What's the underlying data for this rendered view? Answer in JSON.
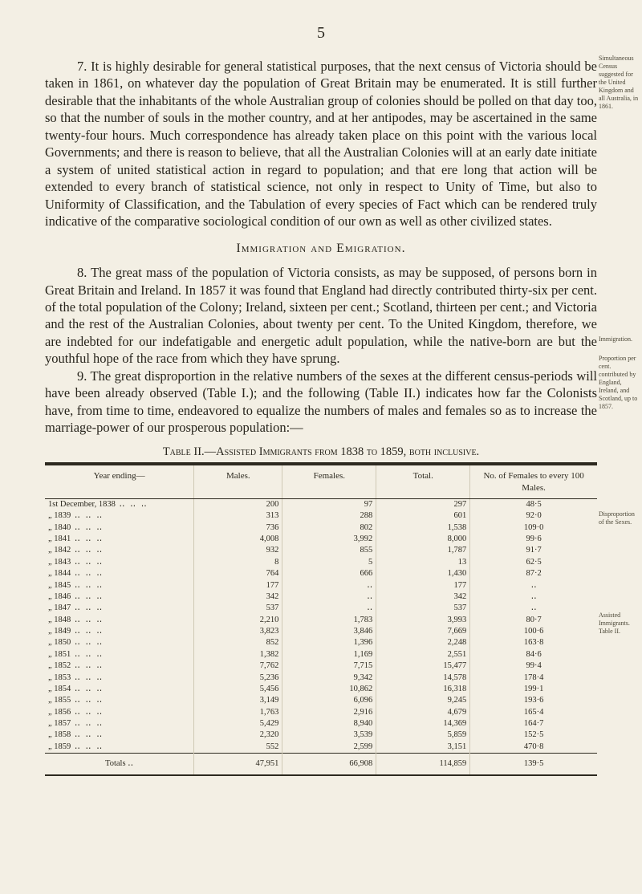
{
  "page_number": "5",
  "paragraphs": {
    "p7": "7. It is highly desirable for general statistical purposes, that the next census of Victoria should be taken in 1861, on whatever day the population of Great Britain may be enumerated. It is still further desirable that the inhabitants of the whole Australian group of colonies should be polled on that day too, so that the number of souls in the mother country, and at her antipodes, may be ascertained in the same twenty-four hours. Much correspondence has already taken place on this point with the various local Governments; and there is reason to believe, that all the Australian Colonies will at an early date initiate a system of united statistical action in regard to population; and that ere long that action will be extended to every branch of statistical science, not only in respect to Unity of Time, but also to Uniformity of Classification, and the Tabulation of every species of Fact which can be rendered truly indicative of the comparative sociological condition of our own as well as other civilized states.",
    "section_head": "Immigration and Emigration.",
    "p8": "8. The great mass of the population of Victoria consists, as may be supposed, of persons born in Great Britain and Ireland. In 1857 it was found that England had directly contributed thirty-six per cent. of the total population of the Colony; Ireland, sixteen per cent.; Scotland, thirteen per cent.; and Victoria and the rest of the Australian Colonies, about twenty per cent. To the United Kingdom, therefore, we are indebted for our indefatigable and energetic adult population, while the native-born are but the youthful hope of the race from which they have sprung.",
    "p9": "9. The great disproportion in the relative numbers of the sexes at the different census-periods will have been already observed (Table I.); and the following (Table II.) indicates how far the Colonists have, from time to time, endeavored to equalize the numbers of males and females so as to increase the marriage-power of our prosperous population:—"
  },
  "margin": {
    "m7": "Simultaneous Census suggested for the United Kingdom and all Australia, in 1861.",
    "m_im": "Immigration.",
    "m8": "Proportion per cent. contributed by England, Ireland, and Scotland, up to 1857.",
    "m9": "Disproportion of the Sexes.",
    "m_tbl": "Assisted Immigrants.\nTable II."
  },
  "table": {
    "title": "Table II.—Assisted Immigrants from 1838 to 1859, both inclusive.",
    "columns": [
      "Year ending—",
      "Males.",
      "Females.",
      "Total.",
      "No. of Females to every 100 Males."
    ],
    "rows": [
      {
        "year": "1st December, 1838",
        "males": "200",
        "females": "97",
        "total": "297",
        "ratio": "48·5"
      },
      {
        "year": "„      1839",
        "males": "313",
        "females": "288",
        "total": "601",
        "ratio": "92·0"
      },
      {
        "year": "„      1840",
        "males": "736",
        "females": "802",
        "total": "1,538",
        "ratio": "109·0"
      },
      {
        "year": "„      1841",
        "males": "4,008",
        "females": "3,992",
        "total": "8,000",
        "ratio": "99·6"
      },
      {
        "year": "„      1842",
        "males": "932",
        "females": "855",
        "total": "1,787",
        "ratio": "91·7"
      },
      {
        "year": "„      1843",
        "males": "8",
        "females": "5",
        "total": "13",
        "ratio": "62·5"
      },
      {
        "year": "„      1844",
        "males": "764",
        "females": "666",
        "total": "1,430",
        "ratio": "87·2"
      },
      {
        "year": "„      1845",
        "males": "177",
        "females": "‥",
        "total": "177",
        "ratio": "‥"
      },
      {
        "year": "„      1846",
        "males": "342",
        "females": "‥",
        "total": "342",
        "ratio": "‥"
      },
      {
        "year": "„      1847",
        "males": "537",
        "females": "‥",
        "total": "537",
        "ratio": "‥"
      },
      {
        "year": "„      1848",
        "males": "2,210",
        "females": "1,783",
        "total": "3,993",
        "ratio": "80·7"
      },
      {
        "year": "„      1849",
        "males": "3,823",
        "females": "3,846",
        "total": "7,669",
        "ratio": "100·6"
      },
      {
        "year": "„      1850",
        "males": "852",
        "females": "1,396",
        "total": "2,248",
        "ratio": "163·8"
      },
      {
        "year": "„      1851",
        "males": "1,382",
        "females": "1,169",
        "total": "2,551",
        "ratio": "84·6"
      },
      {
        "year": "„      1852",
        "males": "7,762",
        "females": "7,715",
        "total": "15,477",
        "ratio": "99·4"
      },
      {
        "year": "„      1853",
        "males": "5,236",
        "females": "9,342",
        "total": "14,578",
        "ratio": "178·4"
      },
      {
        "year": "„      1854",
        "males": "5,456",
        "females": "10,862",
        "total": "16,318",
        "ratio": "199·1"
      },
      {
        "year": "„      1855",
        "males": "3,149",
        "females": "6,096",
        "total": "9,245",
        "ratio": "193·6"
      },
      {
        "year": "„      1856",
        "males": "1,763",
        "females": "2,916",
        "total": "4,679",
        "ratio": "165·4"
      },
      {
        "year": "„      1857",
        "males": "5,429",
        "females": "8,940",
        "total": "14,369",
        "ratio": "164·7"
      },
      {
        "year": "„      1858",
        "males": "2,320",
        "females": "3,539",
        "total": "5,859",
        "ratio": "152·5"
      },
      {
        "year": "„      1859",
        "males": "552",
        "females": "2,599",
        "total": "3,151",
        "ratio": "470·8"
      }
    ],
    "totals": {
      "label": "Totals ‥",
      "males": "47,951",
      "females": "66,908",
      "total": "114,859",
      "ratio": "139·5"
    }
  },
  "style": {
    "page_bg": "#f3efe4",
    "text_color": "#27241c",
    "rule_color": "#2c291f",
    "col_rule": "#cfc9b5",
    "body_fontsize": 16.5,
    "table_fontsize": 10.5,
    "margin_fontsize": 8
  }
}
